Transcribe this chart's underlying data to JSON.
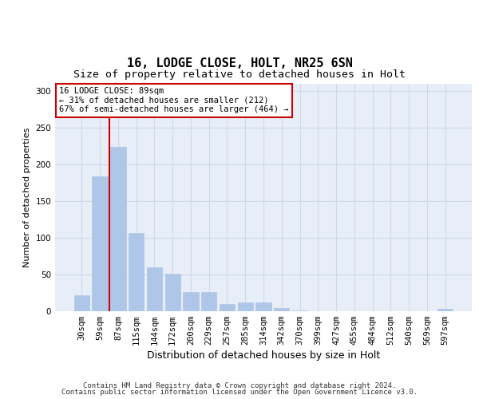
{
  "title1": "16, LODGE CLOSE, HOLT, NR25 6SN",
  "title2": "Size of property relative to detached houses in Holt",
  "xlabel": "Distribution of detached houses by size in Holt",
  "ylabel": "Number of detached properties",
  "categories": [
    "30sqm",
    "59sqm",
    "87sqm",
    "115sqm",
    "144sqm",
    "172sqm",
    "200sqm",
    "229sqm",
    "257sqm",
    "285sqm",
    "314sqm",
    "342sqm",
    "370sqm",
    "399sqm",
    "427sqm",
    "455sqm",
    "484sqm",
    "512sqm",
    "540sqm",
    "569sqm",
    "597sqm"
  ],
  "values": [
    22,
    184,
    224,
    107,
    60,
    51,
    26,
    26,
    10,
    12,
    12,
    4,
    1,
    0,
    0,
    0,
    0,
    0,
    0,
    0,
    3
  ],
  "bar_color": "#aec6e8",
  "bar_edgecolor": "#aec6e8",
  "vline_color": "#cc0000",
  "annotation_text": "16 LODGE CLOSE: 89sqm\n← 31% of detached houses are smaller (212)\n67% of semi-detached houses are larger (464) →",
  "annotation_box_edgecolor": "#cc0000",
  "annotation_box_facecolor": "white",
  "ylim": [
    0,
    310
  ],
  "yticks": [
    0,
    50,
    100,
    150,
    200,
    250,
    300
  ],
  "grid_color": "#d0d8e8",
  "background_color": "#e8eef8",
  "footer_line1": "Contains HM Land Registry data © Crown copyright and database right 2024.",
  "footer_line2": "Contains public sector information licensed under the Open Government Licence v3.0.",
  "title1_fontsize": 11,
  "title2_fontsize": 9.5,
  "xlabel_fontsize": 9,
  "ylabel_fontsize": 8,
  "tick_fontsize": 7.5,
  "annotation_fontsize": 7.5,
  "footer_fontsize": 6.5
}
